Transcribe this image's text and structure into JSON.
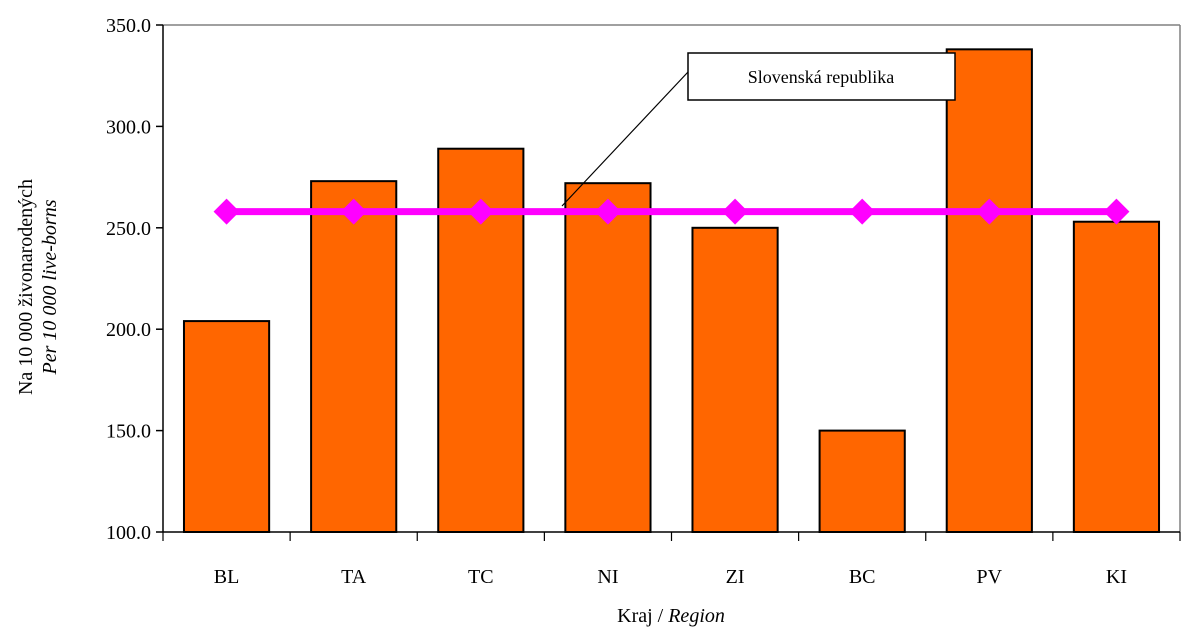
{
  "chart_data": {
    "type": "bar",
    "categories": [
      "BL",
      "TA",
      "TC",
      "NI",
      "ZI",
      "BC",
      "PV",
      "KI"
    ],
    "series": [
      {
        "values": [
          204,
          273,
          289,
          272,
          250,
          150,
          338,
          253
        ],
        "color": "#ff6600",
        "kind": "bar"
      },
      {
        "name": "Slovenská republika",
        "values": [
          258,
          258,
          258,
          258,
          258,
          258,
          258,
          258
        ],
        "color": "#ff00ff",
        "kind": "line",
        "marker": "diamond"
      }
    ],
    "ylim": [
      100,
      350
    ],
    "yticks": [
      "100.0",
      "150.0",
      "200.0",
      "250.0",
      "300.0",
      "350.0"
    ],
    "ylabel_line1": "Na 10 000 živonarodených",
    "ylabel_line2": "Per 10 000 live-borns",
    "xlabel_prefix": "Kraj / ",
    "xlabel_italic": "Region",
    "callout": "Slovenská republika",
    "grid": false
  }
}
